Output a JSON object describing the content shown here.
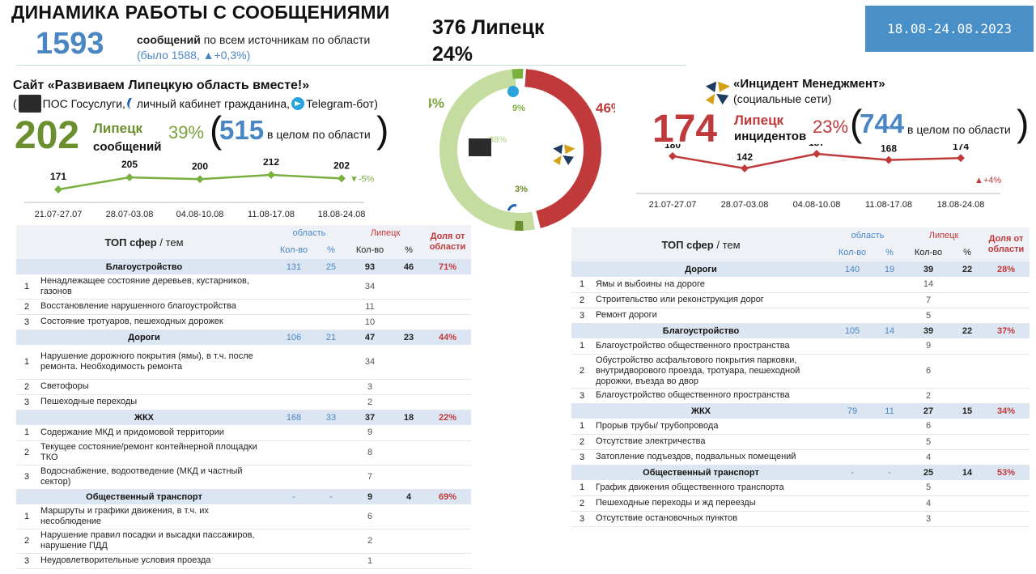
{
  "header": {
    "title": "ДИНАМИКА РАБОТЫ С СООБЩЕНИЯМИ",
    "period": "18.08-24.08.2023",
    "total": "1593",
    "total_bold": "сообщений",
    "total_rest": " по всем источникам по области",
    "total_prev": "(было 1588, ▲+0,3%)",
    "lipetsk_total": "376 Липецк",
    "lipetsk_share": "24%"
  },
  "site": {
    "title": "Сайт «Развиваем Липецкую область вместе!»",
    "sources": [
      "ПОС Госуслуги,",
      "личный кабинет гражданина,",
      "Telegram-бот)"
    ],
    "open_paren": "(",
    "count": "202",
    "label1": "Липецк",
    "label2": "сообщений",
    "pct": "39%",
    "region_count": "515",
    "region_label": "в целом по области",
    "trend_note": "▼-5%"
  },
  "incident": {
    "title": "«Инцидент Менеджмент»",
    "subtitle": "(социальные сети)",
    "count": "174",
    "label1": "Липецк",
    "label2": "инцидентов",
    "pct": "23%",
    "region_count": "744",
    "region_label": "в целом по области",
    "trend_note": "▲+4%"
  },
  "parens": {
    "open": "(",
    "close": ")"
  },
  "chart_data": [
    {
      "type": "line",
      "x": [
        "21.07-27.07",
        "28.07-03.08",
        "04.08-10.08",
        "11.08-17.08",
        "18.08-24.08"
      ],
      "series": [
        {
          "values": [
            171,
            205,
            200,
            212,
            202
          ]
        }
      ],
      "color": "#7ab03f"
    },
    {
      "type": "line",
      "x": [
        "21.07-27.07",
        "28.07-03.08",
        "04.08-10.08",
        "11.08-17.08",
        "18.08-24.08"
      ],
      "series": [
        {
          "values": [
            180,
            142,
            187,
            168,
            174
          ]
        }
      ],
      "color": "#c0393b"
    },
    {
      "type": "pie",
      "outer": [
        {
          "label": "54%",
          "value": 54,
          "color": "#c5dca0"
        },
        {
          "label": "46%",
          "value": 46,
          "color": "#c0393b"
        }
      ],
      "inner": [
        {
          "label": "9%",
          "value": 9,
          "color": "#7ab03f"
        },
        {
          "label": "88%",
          "value": 88,
          "color": "#c5dca0"
        },
        {
          "label": "3%",
          "value": 3,
          "color": "#6b8e2f"
        }
      ]
    }
  ],
  "tables": {
    "headers": {
      "topic": "ТОП сфер",
      "topic_suffix": " / тем",
      "region": "область",
      "lipetsk": "Липецк",
      "share": "Доля от области",
      "count": "Кол-во",
      "pct": "%"
    },
    "left": [
      {
        "name": "Благоустройство",
        "reg_count": "131",
        "reg_pct": "25",
        "lip_count": "93",
        "lip_pct": "46",
        "share": "71%",
        "items": [
          {
            "n": "1",
            "text": "Ненадлежащее состояние деревьев, кустарников, газонов",
            "value": "34"
          },
          {
            "n": "2",
            "text": "Восстановление нарушенного благоустройства",
            "value": "11"
          },
          {
            "n": "3",
            "text": "Состояние тротуаров, пешеходных дорожек",
            "value": "10"
          }
        ]
      },
      {
        "name": "Дороги",
        "reg_count": "106",
        "reg_pct": "21",
        "lip_count": "47",
        "lip_pct": "23",
        "share": "44%",
        "items": [
          {
            "n": "1",
            "text": "Нарушение дорожного покрытия (ямы), в т.ч. после ремонта. Необходимость ремонта",
            "value": "34"
          },
          {
            "n": "2",
            "text": "Светофоры",
            "value": "3"
          },
          {
            "n": "3",
            "text": "Пешеходные переходы",
            "value": "2"
          }
        ]
      },
      {
        "name": "ЖКХ",
        "reg_count": "168",
        "reg_pct": "33",
        "lip_count": "37",
        "lip_pct": "18",
        "share": "22%",
        "items": [
          {
            "n": "1",
            "text": "Содержание МКД и придомовой территории",
            "value": "9"
          },
          {
            "n": "2",
            "text": "Текущее состояние/ремонт контейнерной площадки ТКО",
            "value": "8"
          },
          {
            "n": "3",
            "text": "Водоснабжение, водоотведение (МКД и частный сектор)",
            "value": "7"
          }
        ]
      },
      {
        "name": "Общественный транспорт",
        "reg_count": "-",
        "reg_pct": "-",
        "lip_count": "9",
        "lip_pct": "4",
        "share": "69%",
        "items": [
          {
            "n": "1",
            "text": "Маршруты и графики движения, в т.ч. их несоблюдение",
            "value": "6"
          },
          {
            "n": "2",
            "text": "Нарушение правил посадки и высадки пассажиров, нарушение ПДД",
            "value": "2"
          },
          {
            "n": "3",
            "text": "Неудовлетворительные условия проезда",
            "value": "1"
          }
        ]
      }
    ],
    "right": [
      {
        "name": "Дороги",
        "reg_count": "140",
        "reg_pct": "19",
        "lip_count": "39",
        "lip_pct": "22",
        "share": "28%",
        "items": [
          {
            "n": "1",
            "text": "Ямы и выбоины на дороге",
            "value": "14"
          },
          {
            "n": "2",
            "text": "Строительство или реконструкция дорог",
            "value": "7"
          },
          {
            "n": "3",
            "text": "Ремонт дороги",
            "value": "5"
          }
        ]
      },
      {
        "name": "Благоустройство",
        "reg_count": "105",
        "reg_pct": "14",
        "lip_count": "39",
        "lip_pct": "22",
        "share": "37%",
        "items": [
          {
            "n": "1",
            "text": "Благоустройство общественного пространства",
            "value": "9"
          },
          {
            "n": "2",
            "text": "Обустройство асфальтового покрытия парковки, внутридворового проезда, тротуара, пешеходной дорожки, въезда во двор",
            "value": "6"
          },
          {
            "n": "3",
            "text": "Благоустройство общественного пространства",
            "value": "2"
          }
        ]
      },
      {
        "name": "ЖКХ",
        "reg_count": "79",
        "reg_pct": "11",
        "lip_count": "27",
        "lip_pct": "15",
        "share": "34%",
        "items": [
          {
            "n": "1",
            "text": "Прорыв трубы/ трубопровода",
            "value": "6"
          },
          {
            "n": "2",
            "text": "Отсутствие электричества",
            "value": "5"
          },
          {
            "n": "3",
            "text": "Затопление подъездов, подвальных помещений",
            "value": "4"
          }
        ]
      },
      {
        "name": "Общественный транспорт",
        "reg_count": "-",
        "reg_pct": "-",
        "lip_count": "25",
        "lip_pct": "14",
        "share": "53%",
        "items": [
          {
            "n": "1",
            "text": "График движения общественного транспорта",
            "value": "5"
          },
          {
            "n": "2",
            "text": "Пешеходные переходы и жд переезды",
            "value": "4"
          },
          {
            "n": "3",
            "text": "Отсутствие остановочных пунктов",
            "value": "3"
          }
        ]
      }
    ]
  }
}
